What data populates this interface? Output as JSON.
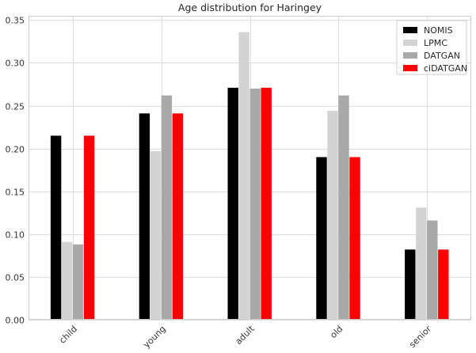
{
  "chart_data": {
    "type": "bar",
    "title": "Age distribution for Haringey",
    "categories": [
      "child",
      "young",
      "adult",
      "old",
      "senior"
    ],
    "series": [
      {
        "name": "NOMIS",
        "color": "#000000",
        "values": [
          0.215,
          0.241,
          0.271,
          0.19,
          0.082
        ]
      },
      {
        "name": "LPMC",
        "color": "#d3d3d3",
        "values": [
          0.091,
          0.197,
          0.336,
          0.244,
          0.131
        ]
      },
      {
        "name": "DATGAN",
        "color": "#a9a9a9",
        "values": [
          0.088,
          0.262,
          0.27,
          0.262,
          0.116
        ]
      },
      {
        "name": "ciDATGAN",
        "color": "#ff0000",
        "values": [
          0.215,
          0.241,
          0.271,
          0.19,
          0.082
        ]
      }
    ],
    "yticks": [
      "0.00",
      "0.05",
      "0.10",
      "0.15",
      "0.20",
      "0.25",
      "0.30",
      "0.35"
    ],
    "ylim": [
      0,
      0.355
    ],
    "xlabel": "",
    "ylabel": "",
    "grid": true,
    "legend_position": "top-right",
    "xtick_rotation": -45
  }
}
